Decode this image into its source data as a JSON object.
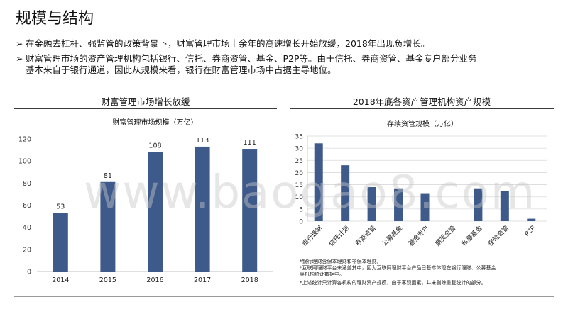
{
  "page": {
    "title": "规模与结构",
    "bullet_mark": "➢",
    "bullet1": "在金融去杠杆、强监管的政策背景下，财富管理市场十余年的高速增长开始放缓，2018年出现负增长。",
    "bullet2_line1": "财富管理市场的资产管理机构包括银行、信托、券商资管、基金、P2P等。由于信托、券商资管、基金专户部分业务",
    "bullet2_line2": "基本来自于银行通道，因此从规模来看，银行在财富管理市场中占据主导地位。",
    "left_panel_title": "财富管理市场增长放缓",
    "right_panel_title": "2018年底各资产管理机构资产规模",
    "watermark": "www.baogao8.com",
    "footnotes": [
      "*银行理财含保本理财和非保本理财。",
      "*互联网理财平台未涵盖其中，因为互联网理财平台产品已基本体现在银行理财、公募基金",
      "等机构统计数据中。",
      "*上述统计只计算各机构的理财资产规模，由于客观因素，并未剔除重复统计的部分。"
    ]
  },
  "chart_data": [
    {
      "type": "bar",
      "title": "财富管理市场规模（万亿）",
      "categories": [
        "2014",
        "2015",
        "2016",
        "2017",
        "2018"
      ],
      "values": [
        53,
        81,
        108,
        113,
        111
      ],
      "data_labels": [
        "53",
        "81",
        "108",
        "113",
        "111"
      ],
      "ylim": [
        0,
        120
      ],
      "yticks": [
        "0",
        "20",
        "40",
        "60",
        "80",
        "100",
        "120"
      ],
      "grid": false,
      "color": "#3d5a8a"
    },
    {
      "type": "bar",
      "title": "存续资管规模（万亿）",
      "categories": [
        "银行理财",
        "信托计划",
        "券商资管",
        "公募基金",
        "基金专户",
        "期货资管",
        "私募基金",
        "保险资管",
        "P2P"
      ],
      "values": [
        32,
        23,
        14,
        13.5,
        11.5,
        0,
        13.5,
        12.5,
        1
      ],
      "ylim": [
        0,
        35
      ],
      "yticks": [
        "0",
        "5",
        "10",
        "15",
        "20",
        "25",
        "30",
        "35"
      ],
      "grid": true,
      "color": "#3d5a8a"
    }
  ]
}
